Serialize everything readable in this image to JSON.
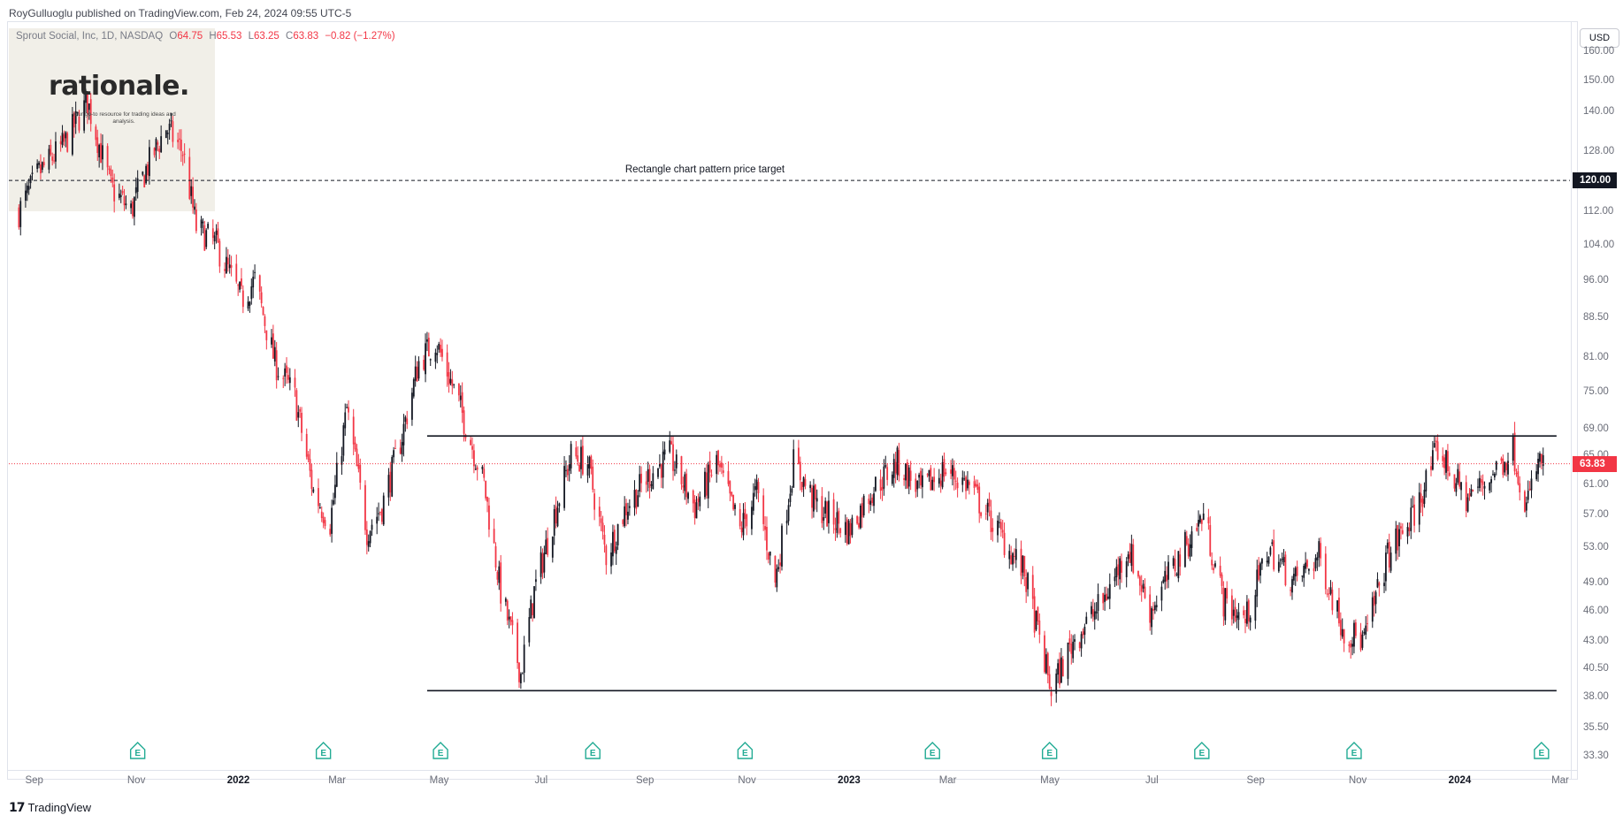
{
  "header": {
    "publish_text": "RoyGulluoglu published on TradingView.com, Feb 24, 2024 09:55 UTC-5"
  },
  "legend": {
    "symbol": "Sprout Social, Inc, 1D, NASDAQ",
    "o_label": "O",
    "o": "64.75",
    "h_label": "H",
    "h": "65.53",
    "l_label": "L",
    "l": "63.25",
    "c_label": "C",
    "c": "63.83",
    "change": "−0.82 (−1.27%)"
  },
  "watermark": {
    "title": "rationale.",
    "subtitle": "your go-to resource for trading ideas and analysis."
  },
  "currency_button": "USD",
  "price_badges": {
    "target": "120.00",
    "last": "63.83"
  },
  "annotation": "Rectangle chart pattern price target",
  "footer": {
    "brand": "TradingView"
  },
  "icons": {
    "earnings": "earnings-marker-icon",
    "brand": "tradingview-logo-icon"
  },
  "colors": {
    "up": "#131722",
    "down": "#f23645",
    "line": "#131722",
    "last_price": "#f23645"
  },
  "chart_data": {
    "type": "candlestick",
    "title": "Sprout Social, Inc, 1D, NASDAQ",
    "y_axis": {
      "scale": "log",
      "ticks": [
        "160.00",
        "150.00",
        "140.00",
        "128.00",
        "120.00",
        "112.00",
        "104.00",
        "96.00",
        "88.50",
        "81.00",
        "75.00",
        "69.00",
        "65.00",
        "61.00",
        "57.00",
        "53.00",
        "49.00",
        "46.00",
        "43.00",
        "40.50",
        "38.00",
        "35.50",
        "33.30"
      ],
      "range": [
        33.3,
        160
      ]
    },
    "x_axis": {
      "ticks": [
        "Sep",
        "Nov",
        "2022",
        "Mar",
        "May",
        "Jul",
        "Sep",
        "Nov",
        "2023",
        "Mar",
        "May",
        "Jul",
        "Sep",
        "Nov",
        "2024",
        "Mar"
      ],
      "bold_ticks": [
        "2022",
        "2023",
        "2024"
      ],
      "range": [
        "2021-08-20",
        "2024-03-10"
      ]
    },
    "price_path": [
      [
        "2021-08-26",
        112.0
      ],
      [
        "2021-09-07",
        122.0
      ],
      [
        "2021-09-22",
        130.0
      ],
      [
        "2021-10-06",
        143.0
      ],
      [
        "2021-10-20",
        118.0
      ],
      [
        "2021-11-01",
        112.0
      ],
      [
        "2021-11-10",
        123.0
      ],
      [
        "2021-11-22",
        135.0
      ],
      [
        "2021-12-02",
        128.0
      ],
      [
        "2021-12-10",
        108.0
      ],
      [
        "2021-12-22",
        104.0
      ],
      [
        "2022-01-06",
        92.0
      ],
      [
        "2022-01-14",
        96.0
      ],
      [
        "2022-01-26",
        80.0
      ],
      [
        "2022-02-07",
        74.0
      ],
      [
        "2022-02-18",
        60.0
      ],
      [
        "2022-02-28",
        56.0
      ],
      [
        "2022-03-10",
        72.0
      ],
      [
        "2022-03-22",
        55.0
      ],
      [
        "2022-03-31",
        58.0
      ],
      [
        "2022-04-12",
        68.0
      ],
      [
        "2022-04-22",
        80.0
      ],
      [
        "2022-05-02",
        84.0
      ],
      [
        "2022-05-16",
        73.0
      ],
      [
        "2022-05-31",
        61.0
      ],
      [
        "2022-06-10",
        48.0
      ],
      [
        "2022-06-22",
        40.0
      ],
      [
        "2022-06-30",
        48.0
      ],
      [
        "2022-07-12",
        57.0
      ],
      [
        "2022-07-22",
        65.0
      ],
      [
        "2022-08-01",
        64.0
      ],
      [
        "2022-08-12",
        52.0
      ],
      [
        "2022-08-24",
        58.0
      ],
      [
        "2022-09-06",
        62.0
      ],
      [
        "2022-09-19",
        65.0
      ],
      [
        "2022-10-04",
        58.0
      ],
      [
        "2022-10-17",
        64.0
      ],
      [
        "2022-10-31",
        55.0
      ],
      [
        "2022-11-10",
        60.0
      ],
      [
        "2022-11-21",
        49.0
      ],
      [
        "2022-12-02",
        64.0
      ],
      [
        "2022-12-16",
        58.0
      ],
      [
        "2023-01-04",
        55.0
      ],
      [
        "2023-01-17",
        60.0
      ],
      [
        "2023-02-02",
        64.0
      ],
      [
        "2023-02-16",
        60.0
      ],
      [
        "2023-03-02",
        63.0
      ],
      [
        "2023-03-16",
        61.0
      ],
      [
        "2023-04-03",
        55.0
      ],
      [
        "2023-04-19",
        50.0
      ],
      [
        "2023-05-05",
        38.5
      ],
      [
        "2023-05-18",
        43.0
      ],
      [
        "2023-06-05",
        47.0
      ],
      [
        "2023-06-20",
        53.0
      ],
      [
        "2023-07-03",
        46.0
      ],
      [
        "2023-07-18",
        51.0
      ],
      [
        "2023-08-04",
        57.0
      ],
      [
        "2023-08-16",
        47.0
      ],
      [
        "2023-08-29",
        45.0
      ],
      [
        "2023-09-12",
        53.0
      ],
      [
        "2023-09-27",
        49.0
      ],
      [
        "2023-10-12",
        52.0
      ],
      [
        "2023-10-27",
        44.0
      ],
      [
        "2023-11-08",
        43.0
      ],
      [
        "2023-11-22",
        52.0
      ],
      [
        "2023-12-08",
        57.0
      ],
      [
        "2023-12-22",
        66.0
      ],
      [
        "2024-01-08",
        59.0
      ],
      [
        "2024-01-22",
        62.0
      ],
      [
        "2024-02-05",
        66.0
      ],
      [
        "2024-02-13",
        58.0
      ],
      [
        "2024-02-20",
        64.0
      ],
      [
        "2024-02-23",
        63.83
      ]
    ],
    "horizontal_lines": [
      {
        "name": "Rectangle chart pattern price target",
        "price": 120.0,
        "style": "dashed",
        "from": "2021-08-20",
        "to": "2024-03-10"
      },
      {
        "price": 67.9,
        "style": "solid",
        "from": "2022-04-27",
        "to": "2024-03-02"
      },
      {
        "price": 38.5,
        "style": "solid",
        "from": "2022-04-27",
        "to": "2024-03-02"
      },
      {
        "price": 63.83,
        "style": "dotted",
        "from": "2021-08-20",
        "to": "2024-03-10"
      }
    ],
    "earnings_dates": [
      "2021-11-05",
      "2022-02-24",
      "2022-05-05",
      "2022-08-04",
      "2022-11-03",
      "2023-02-23",
      "2023-05-04",
      "2023-08-03",
      "2023-11-02",
      "2024-02-22"
    ]
  }
}
